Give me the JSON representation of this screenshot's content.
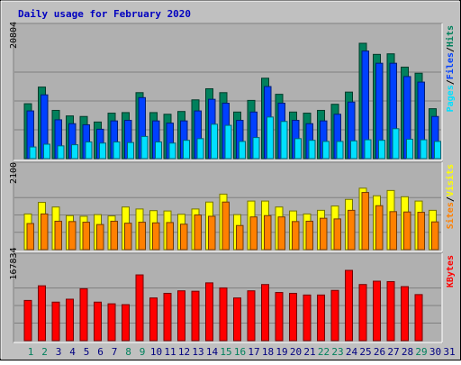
{
  "title": "Daily usage for February 2020",
  "colors": {
    "background": "#c0c0c0",
    "panel": "#b0b0b0",
    "title": "#0000c0",
    "hits": "#00805c",
    "files": "#0040ff",
    "pages": "#00e0ff",
    "visits": "#ffff00",
    "sites": "#ff8000",
    "kbytes": "#ff0000",
    "weekend_day": "#00805c",
    "weekday_day": "#000080"
  },
  "chart_data": [
    {
      "type": "bar",
      "panel": "hits-files-pages",
      "ymax_label": "20804",
      "ylim": [
        0,
        20804
      ],
      "legend": [
        {
          "key": "pages",
          "label": "Pages"
        },
        {
          "key": "files",
          "label": "Files"
        },
        {
          "key": "hits",
          "label": "Hits"
        }
      ],
      "categories": [
        "1",
        "2",
        "3",
        "4",
        "5",
        "6",
        "7",
        "8",
        "9",
        "10",
        "11",
        "12",
        "13",
        "14",
        "15",
        "16",
        "17",
        "18",
        "19",
        "20",
        "21",
        "22",
        "23",
        "24",
        "25",
        "26",
        "27",
        "28",
        "29",
        "30",
        "31"
      ],
      "series": [
        {
          "name": "Hits",
          "key": "hits",
          "values": [
            9900,
            12900,
            8700,
            7700,
            7600,
            6600,
            8200,
            8300,
            11900,
            8300,
            8000,
            8500,
            10600,
            12600,
            11900,
            8400,
            10500,
            14500,
            11600,
            8400,
            8200,
            8700,
            9800,
            12000,
            20804,
            18800,
            18900,
            16500,
            15400,
            9000,
            0
          ]
        },
        {
          "name": "Files",
          "key": "files",
          "values": [
            8600,
            11500,
            7000,
            6300,
            6100,
            5300,
            6800,
            6900,
            11000,
            6800,
            6400,
            6800,
            8600,
            10700,
            10000,
            6900,
            8400,
            13000,
            10000,
            6900,
            6300,
            6800,
            8000,
            10200,
            19400,
            17200,
            17200,
            14800,
            13800,
            7600,
            0
          ]
        },
        {
          "name": "Pages",
          "key": "pages",
          "values": [
            2100,
            2600,
            2300,
            2500,
            3000,
            2800,
            3000,
            2900,
            4000,
            3000,
            2800,
            3300,
            3600,
            6200,
            6000,
            3100,
            3800,
            7500,
            6700,
            3600,
            3300,
            3100,
            3100,
            3200,
            3400,
            3300,
            5400,
            3500,
            3400,
            3100,
            0
          ]
        }
      ]
    },
    {
      "type": "bar",
      "panel": "visits-sites",
      "ymax_label": "2100",
      "ylim": [
        0,
        2100
      ],
      "legend": [
        {
          "key": "sites",
          "label": "Sites"
        },
        {
          "key": "visits",
          "label": "Visits"
        }
      ],
      "categories": [
        "1",
        "2",
        "3",
        "4",
        "5",
        "6",
        "7",
        "8",
        "9",
        "10",
        "11",
        "12",
        "13",
        "14",
        "15",
        "16",
        "17",
        "18",
        "19",
        "20",
        "21",
        "22",
        "23",
        "24",
        "25",
        "26",
        "27",
        "28",
        "29",
        "30",
        "31"
      ],
      "series": [
        {
          "name": "Visits",
          "key": "visits",
          "values": [
            1080,
            1430,
            1290,
            1030,
            1010,
            1060,
            1020,
            1290,
            1230,
            1180,
            1170,
            1070,
            1230,
            1440,
            1680,
            1060,
            1470,
            1470,
            1290,
            1170,
            1080,
            1190,
            1320,
            1520,
            1860,
            1630,
            1790,
            1600,
            1470,
            1190,
            0
          ]
        },
        {
          "name": "Sites",
          "key": "sites",
          "values": [
            790,
            1080,
            860,
            850,
            830,
            760,
            860,
            800,
            830,
            810,
            820,
            770,
            1050,
            1010,
            1440,
            730,
            990,
            1030,
            990,
            850,
            860,
            950,
            930,
            1190,
            1730,
            1330,
            1150,
            1140,
            1130,
            840,
            0
          ]
        }
      ]
    },
    {
      "type": "bar",
      "panel": "kbytes",
      "ymax_label": "167834",
      "ylim": [
        0,
        167834
      ],
      "legend": [
        {
          "key": "kbytes",
          "label": "KBytes"
        }
      ],
      "categories": [
        "1",
        "2",
        "3",
        "4",
        "5",
        "6",
        "7",
        "8",
        "9",
        "10",
        "11",
        "12",
        "13",
        "14",
        "15",
        "16",
        "17",
        "18",
        "19",
        "20",
        "21",
        "22",
        "23",
        "24",
        "25",
        "26",
        "27",
        "28",
        "29",
        "30",
        "31"
      ],
      "series": [
        {
          "name": "KBytes",
          "key": "kbytes",
          "values": [
            96000,
            131000,
            92000,
            99000,
            124000,
            92000,
            88000,
            86000,
            157000,
            102000,
            113000,
            119000,
            118000,
            138000,
            126000,
            102000,
            119000,
            134000,
            115000,
            113000,
            109000,
            109000,
            120000,
            167834,
            134000,
            142000,
            141000,
            129000,
            110000,
            0,
            0
          ]
        }
      ]
    }
  ],
  "days": [
    {
      "label": "1",
      "weekend": true
    },
    {
      "label": "2",
      "weekend": true
    },
    {
      "label": "3",
      "weekend": false
    },
    {
      "label": "4",
      "weekend": false
    },
    {
      "label": "5",
      "weekend": false
    },
    {
      "label": "6",
      "weekend": false
    },
    {
      "label": "7",
      "weekend": false
    },
    {
      "label": "8",
      "weekend": true
    },
    {
      "label": "9",
      "weekend": true
    },
    {
      "label": "10",
      "weekend": false
    },
    {
      "label": "11",
      "weekend": false
    },
    {
      "label": "12",
      "weekend": false
    },
    {
      "label": "13",
      "weekend": false
    },
    {
      "label": "14",
      "weekend": false
    },
    {
      "label": "15",
      "weekend": true
    },
    {
      "label": "16",
      "weekend": true
    },
    {
      "label": "17",
      "weekend": false
    },
    {
      "label": "18",
      "weekend": false
    },
    {
      "label": "19",
      "weekend": false
    },
    {
      "label": "20",
      "weekend": false
    },
    {
      "label": "21",
      "weekend": false
    },
    {
      "label": "22",
      "weekend": true
    },
    {
      "label": "23",
      "weekend": true
    },
    {
      "label": "24",
      "weekend": false
    },
    {
      "label": "25",
      "weekend": false
    },
    {
      "label": "26",
      "weekend": false
    },
    {
      "label": "27",
      "weekend": false
    },
    {
      "label": "28",
      "weekend": false
    },
    {
      "label": "29",
      "weekend": true
    },
    {
      "label": "30",
      "weekend": false
    },
    {
      "label": "31",
      "weekend": false
    }
  ]
}
